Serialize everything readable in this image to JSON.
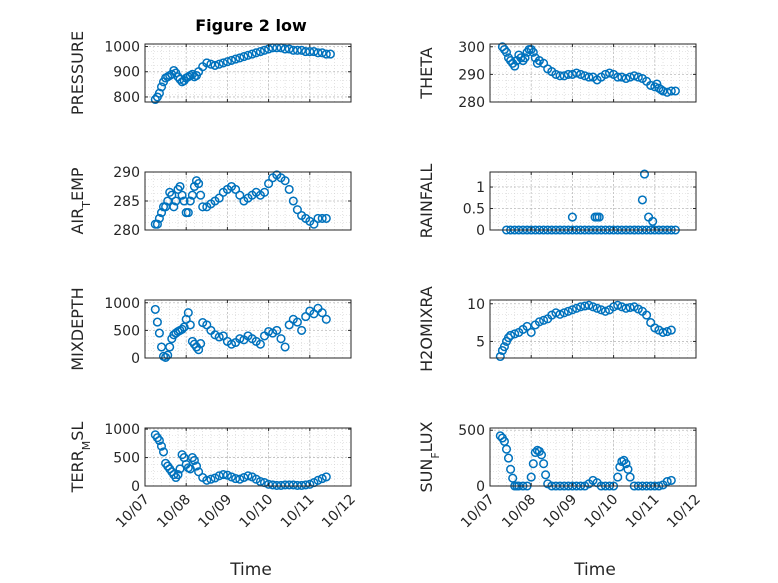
{
  "chart_data": {
    "type": "scatter",
    "title": "Figure 2 low",
    "xlabel": "Time",
    "x_tick_labels": [
      "10/07",
      "10/08",
      "10/09",
      "10/10",
      "10/11",
      "10/12"
    ],
    "xlim": [
      0,
      5
    ],
    "marker_color": "#0072BD",
    "grid": "on (dotted, minor)",
    "panels": [
      {
        "ylabel": "PRESSURE",
        "ylim": [
          780,
          1010
        ],
        "yticks": [
          800,
          900,
          1000
        ],
        "x": [
          0.25,
          0.3,
          0.35,
          0.4,
          0.45,
          0.5,
          0.55,
          0.6,
          0.65,
          0.7,
          0.75,
          0.8,
          0.85,
          0.9,
          0.95,
          1.0,
          1.05,
          1.1,
          1.15,
          1.2,
          1.25,
          1.3,
          1.4,
          1.5,
          1.6,
          1.7,
          1.8,
          1.9,
          2.0,
          2.1,
          2.2,
          2.3,
          2.4,
          2.5,
          2.6,
          2.7,
          2.8,
          2.9,
          3.0,
          3.1,
          3.2,
          3.3,
          3.4,
          3.5,
          3.6,
          3.7,
          3.8,
          3.9,
          4.0,
          4.1,
          4.2,
          4.3,
          4.4,
          4.5
        ],
        "y": [
          790,
          800,
          815,
          840,
          860,
          875,
          880,
          885,
          890,
          905,
          895,
          880,
          870,
          860,
          865,
          875,
          880,
          885,
          890,
          880,
          885,
          900,
          920,
          935,
          930,
          925,
          930,
          935,
          940,
          945,
          950,
          955,
          960,
          965,
          970,
          975,
          980,
          985,
          990,
          995,
          995,
          995,
          990,
          990,
          985,
          985,
          985,
          980,
          980,
          980,
          975,
          975,
          970,
          970
        ]
      },
      {
        "ylabel": "THETA",
        "ylim": [
          280,
          301
        ],
        "yticks": [
          280,
          290,
          300
        ],
        "x": [
          0.3,
          0.35,
          0.4,
          0.45,
          0.5,
          0.55,
          0.6,
          0.65,
          0.7,
          0.75,
          0.8,
          0.85,
          0.9,
          0.95,
          1.0,
          1.05,
          1.1,
          1.15,
          1.2,
          1.3,
          1.4,
          1.5,
          1.6,
          1.7,
          1.8,
          1.9,
          2.0,
          2.1,
          2.2,
          2.3,
          2.4,
          2.5,
          2.6,
          2.7,
          2.8,
          2.9,
          3.0,
          3.1,
          3.2,
          3.3,
          3.4,
          3.5,
          3.6,
          3.7,
          3.8,
          3.9,
          4.0,
          4.05,
          4.1,
          4.15,
          4.2,
          4.3,
          4.4,
          4.5
        ],
        "y": [
          300,
          299,
          298,
          296,
          295,
          294,
          293,
          295,
          297,
          296,
          295,
          296,
          298,
          299,
          299,
          298,
          296,
          294,
          295,
          294,
          292,
          291,
          290,
          289.5,
          289.5,
          290,
          290,
          290.5,
          290,
          289.5,
          289,
          289,
          288,
          289,
          290,
          290.5,
          290,
          289,
          289,
          288.5,
          289,
          289.5,
          289,
          288.5,
          287.5,
          286,
          285.5,
          286.5,
          285,
          284.5,
          284,
          283.5,
          284,
          284
        ]
      },
      {
        "ylabel": "AIR_TEMP",
        "ylim": [
          280,
          290
        ],
        "yticks": [
          280,
          285,
          290
        ],
        "x": [
          0.25,
          0.3,
          0.35,
          0.4,
          0.45,
          0.5,
          0.55,
          0.6,
          0.65,
          0.7,
          0.75,
          0.8,
          0.85,
          0.9,
          0.95,
          1.0,
          1.05,
          1.1,
          1.15,
          1.2,
          1.25,
          1.3,
          1.35,
          1.4,
          1.5,
          1.6,
          1.7,
          1.8,
          1.9,
          2.0,
          2.1,
          2.2,
          2.3,
          2.4,
          2.5,
          2.6,
          2.7,
          2.8,
          2.9,
          3.0,
          3.1,
          3.2,
          3.3,
          3.4,
          3.5,
          3.6,
          3.7,
          3.8,
          3.9,
          4.0,
          4.1,
          4.2,
          4.3,
          4.4
        ],
        "y": [
          281,
          281,
          282,
          283,
          284,
          284,
          285,
          286.5,
          286,
          284,
          285,
          287,
          287.5,
          286,
          285,
          283,
          283,
          285,
          286,
          287.5,
          288.5,
          288,
          286,
          284,
          284,
          284.5,
          285,
          285.5,
          286.5,
          287,
          287.5,
          287,
          286,
          285,
          285.5,
          286,
          286.5,
          286,
          286.5,
          288,
          289,
          289.5,
          289,
          288.5,
          287,
          285,
          283.5,
          282.5,
          282,
          281.5,
          281,
          282,
          282,
          282
        ]
      },
      {
        "ylabel": "RAINFALL",
        "ylim": [
          0,
          1.35
        ],
        "yticks": [
          0,
          0.5,
          1
        ],
        "x": [
          0.4,
          0.5,
          0.6,
          0.7,
          0.8,
          0.9,
          1.0,
          1.1,
          1.2,
          1.3,
          1.4,
          1.5,
          1.6,
          1.7,
          1.8,
          1.9,
          2.0,
          2.1,
          2.2,
          2.3,
          2.4,
          2.5,
          2.6,
          2.7,
          2.8,
          2.9,
          3.0,
          3.1,
          3.2,
          3.3,
          3.4,
          3.5,
          3.6,
          3.7,
          3.8,
          3.9,
          4.0,
          4.1,
          4.2,
          4.3,
          4.4,
          4.5,
          2.0,
          2.55,
          2.6,
          2.65,
          3.7,
          3.75,
          3.85,
          3.95
        ],
        "y": [
          0,
          0,
          0,
          0,
          0,
          0,
          0,
          0,
          0,
          0,
          0,
          0,
          0,
          0,
          0,
          0,
          0,
          0,
          0,
          0,
          0,
          0,
          0,
          0,
          0,
          0,
          0,
          0,
          0,
          0,
          0,
          0,
          0,
          0,
          0,
          0,
          0,
          0,
          0,
          0,
          0,
          0,
          0.3,
          0.3,
          0.3,
          0.3,
          0.7,
          1.3,
          0.3,
          0.2
        ]
      },
      {
        "ylabel": "MIXDEPTH",
        "ylim": [
          0,
          1050
        ],
        "yticks": [
          0,
          500,
          1000
        ],
        "x": [
          0.25,
          0.3,
          0.35,
          0.4,
          0.45,
          0.5,
          0.55,
          0.6,
          0.65,
          0.7,
          0.75,
          0.8,
          0.85,
          0.9,
          0.95,
          1.0,
          1.05,
          1.1,
          1.15,
          1.2,
          1.25,
          1.3,
          1.35,
          1.4,
          1.5,
          1.6,
          1.7,
          1.8,
          1.9,
          2.0,
          2.1,
          2.2,
          2.3,
          2.4,
          2.5,
          2.6,
          2.7,
          2.8,
          2.9,
          3.0,
          3.1,
          3.2,
          3.3,
          3.4,
          3.5,
          3.6,
          3.7,
          3.8,
          3.9,
          4.0,
          4.1,
          4.2,
          4.3,
          4.4
        ],
        "y": [
          880,
          650,
          450,
          200,
          30,
          10,
          50,
          200,
          350,
          420,
          450,
          480,
          500,
          520,
          560,
          700,
          820,
          600,
          300,
          250,
          200,
          150,
          260,
          640,
          600,
          500,
          420,
          380,
          400,
          300,
          250,
          280,
          350,
          330,
          400,
          350,
          300,
          250,
          400,
          480,
          450,
          500,
          350,
          200,
          600,
          700,
          650,
          500,
          750,
          850,
          800,
          900,
          820,
          700
        ]
      },
      {
        "ylabel": "H2OMIXRA",
        "ylim": [
          2.8,
          10.5
        ],
        "yticks": [
          5,
          10
        ],
        "x": [
          0.25,
          0.3,
          0.35,
          0.4,
          0.45,
          0.5,
          0.6,
          0.7,
          0.8,
          0.9,
          1.0,
          1.1,
          1.2,
          1.3,
          1.4,
          1.5,
          1.6,
          1.7,
          1.8,
          1.9,
          2.0,
          2.1,
          2.2,
          2.3,
          2.4,
          2.5,
          2.6,
          2.7,
          2.8,
          2.9,
          3.0,
          3.1,
          3.2,
          3.3,
          3.4,
          3.5,
          3.6,
          3.7,
          3.8,
          3.9,
          4.0,
          4.1,
          4.2,
          4.3,
          4.4
        ],
        "y": [
          3,
          3.8,
          4.3,
          5.0,
          5.5,
          5.8,
          6.0,
          6.2,
          6.6,
          7.0,
          6.2,
          7.2,
          7.6,
          7.8,
          8.0,
          8.5,
          8.8,
          8.6,
          8.8,
          9.0,
          9.2,
          9.4,
          9.6,
          9.7,
          9.8,
          9.6,
          9.4,
          9.2,
          9.0,
          9.2,
          9.6,
          9.8,
          9.6,
          9.4,
          9.5,
          9.6,
          9.3,
          9.0,
          8.5,
          7.5,
          6.8,
          6.5,
          6.2,
          6.3,
          6.5
        ]
      },
      {
        "ylabel": "TERR_MSL",
        "ylim": [
          0,
          1020
        ],
        "yticks": [
          0,
          500,
          1000
        ],
        "x": [
          0.25,
          0.3,
          0.35,
          0.4,
          0.45,
          0.5,
          0.55,
          0.6,
          0.65,
          0.7,
          0.75,
          0.8,
          0.85,
          0.9,
          0.95,
          1.0,
          1.05,
          1.1,
          1.15,
          1.2,
          1.25,
          1.3,
          1.4,
          1.5,
          1.6,
          1.7,
          1.8,
          1.9,
          2.0,
          2.1,
          2.2,
          2.3,
          2.4,
          2.5,
          2.6,
          2.7,
          2.8,
          2.9,
          3.0,
          3.1,
          3.2,
          3.3,
          3.4,
          3.5,
          3.6,
          3.7,
          3.8,
          3.9,
          4.0,
          4.1,
          4.2,
          4.3,
          4.4
        ],
        "y": [
          900,
          850,
          800,
          700,
          600,
          400,
          350,
          300,
          250,
          200,
          150,
          200,
          300,
          550,
          500,
          380,
          320,
          300,
          500,
          450,
          350,
          250,
          150,
          100,
          120,
          140,
          180,
          200,
          190,
          160,
          130,
          120,
          150,
          180,
          160,
          120,
          80,
          60,
          30,
          20,
          10,
          10,
          20,
          20,
          20,
          10,
          10,
          20,
          30,
          60,
          100,
          130,
          160
        ]
      },
      {
        "ylabel": "SUN_FLUX",
        "ylim": [
          0,
          520
        ],
        "yticks": [
          0,
          500
        ],
        "x": [
          0.25,
          0.3,
          0.35,
          0.4,
          0.45,
          0.5,
          0.55,
          0.6,
          0.65,
          0.7,
          0.8,
          0.9,
          1.0,
          1.05,
          1.1,
          1.15,
          1.2,
          1.25,
          1.3,
          1.35,
          1.4,
          1.5,
          1.6,
          1.7,
          1.8,
          1.9,
          2.0,
          2.1,
          2.2,
          2.3,
          2.4,
          2.5,
          2.6,
          2.7,
          2.8,
          2.9,
          3.0,
          3.1,
          3.15,
          3.2,
          3.25,
          3.3,
          3.35,
          3.4,
          3.5,
          3.6,
          3.7,
          3.8,
          3.9,
          4.0,
          4.1,
          4.2,
          4.3,
          4.4
        ],
        "y": [
          450,
          430,
          400,
          330,
          250,
          150,
          70,
          0,
          0,
          0,
          0,
          0,
          80,
          200,
          300,
          320,
          310,
          280,
          200,
          100,
          20,
          0,
          0,
          0,
          0,
          0,
          0,
          0,
          0,
          0,
          20,
          50,
          30,
          0,
          0,
          0,
          0,
          80,
          170,
          220,
          230,
          200,
          150,
          80,
          0,
          0,
          0,
          0,
          0,
          0,
          0,
          10,
          40,
          50
        ]
      }
    ]
  },
  "ylabel_parts": [
    {
      "main": "PRESSURE",
      "sub": "",
      "tail": ""
    },
    {
      "main": "THETA",
      "sub": "",
      "tail": ""
    },
    {
      "main": "AIR",
      "sub": "T",
      "tail": "EMP"
    },
    {
      "main": "RAINFALL",
      "sub": "",
      "tail": ""
    },
    {
      "main": "MIXDEPTH",
      "sub": "",
      "tail": ""
    },
    {
      "main": "H2OMIXRA",
      "sub": "",
      "tail": ""
    },
    {
      "main": "TERR",
      "sub": "M",
      "tail": "SL"
    },
    {
      "main": "SUN",
      "sub": "F",
      "tail": "LUX"
    }
  ],
  "y_tick_texts": [
    [
      "800",
      "900",
      "1000"
    ],
    [
      "280",
      "290",
      "300"
    ],
    [
      "280",
      "285",
      "290"
    ],
    [
      "0",
      "0.5",
      "1"
    ],
    [
      "0",
      "500",
      "1000"
    ],
    [
      "5",
      "10"
    ],
    [
      "0",
      "500",
      "1000"
    ],
    [
      "0",
      "500"
    ]
  ]
}
